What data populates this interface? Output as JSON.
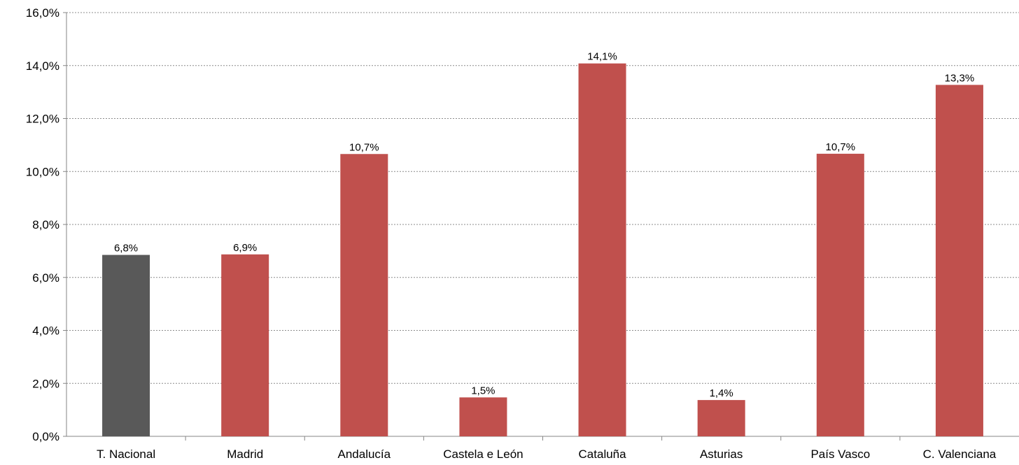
{
  "chart_data": {
    "type": "bar",
    "title": "",
    "xlabel": "",
    "ylabel": "",
    "ylim": [
      0,
      16
    ],
    "y_ticks": [
      "0,0%",
      "2,0%",
      "4,0%",
      "6,0%",
      "8,0%",
      "10,0%",
      "12,0%",
      "14,0%",
      "16,0%"
    ],
    "grid": true,
    "legend": "none",
    "categories": [
      "T. Nacional",
      "Madrid",
      "Andalucía",
      "Castela e León",
      "Cataluña",
      "Asturias",
      "País Vasco",
      "C. Valenciana"
    ],
    "values": [
      6.85,
      6.87,
      10.66,
      1.47,
      14.08,
      1.37,
      10.67,
      13.27
    ],
    "value_labels": [
      "6,8%",
      "6,9%",
      "10,7%",
      "1,5%",
      "14,1%",
      "1,4%",
      "10,7%",
      "13,3%"
    ],
    "colors": [
      "#595959",
      "#C0504D",
      "#C0504D",
      "#C0504D",
      "#C0504D",
      "#C0504D",
      "#C0504D",
      "#C0504D"
    ]
  }
}
